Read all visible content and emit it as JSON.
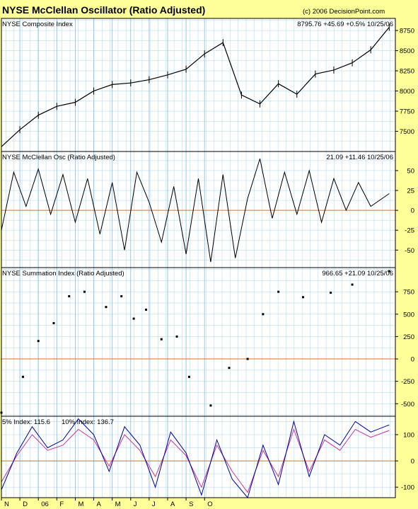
{
  "header": {
    "title": "NYSE McClellan Oscillator (Ratio Adjusted)",
    "copyright": "(c) 2006 DecisionPoint.com"
  },
  "colors": {
    "background": "#ffff99",
    "plot_bg": "#ffffff",
    "grid": "#b8dcf0",
    "zero_line": "#e07020",
    "price": "#000000",
    "index5": "#cc3399",
    "index10": "#000099"
  },
  "months": [
    "N",
    "D",
    "06",
    "F",
    "M",
    "A",
    "M",
    "J",
    "J",
    "A",
    "S",
    "O"
  ],
  "chart_data": [
    {
      "type": "line",
      "name": "composite",
      "title": "NYSE Composite Index",
      "readout": "8795.76  +45.69  +0.5%  10/25/06",
      "ylim": [
        7250,
        8900
      ],
      "yticks": [
        7500,
        7750,
        8000,
        8250,
        8500,
        8750
      ],
      "xlabels": [
        "N",
        "D",
        "06",
        "F",
        "M",
        "A",
        "M",
        "J",
        "J",
        "A",
        "S",
        "O"
      ],
      "x": [
        0,
        12,
        24,
        36,
        48,
        60,
        72,
        84,
        96,
        108,
        120,
        132,
        144,
        156,
        168,
        180,
        192,
        204,
        216,
        228,
        240,
        252
      ],
      "y": [
        7310,
        7520,
        7700,
        7810,
        7860,
        8000,
        8080,
        8100,
        8140,
        8200,
        8270,
        8460,
        8600,
        7950,
        7840,
        8090,
        7960,
        8210,
        8260,
        8350,
        8510,
        8790
      ]
    },
    {
      "type": "line",
      "name": "oscillator",
      "title": "NYSE McClellan Osc (Ratio Adjusted)",
      "readout": "21.09  +11.46  10/25/06",
      "ylim": [
        -72,
        74
      ],
      "yticks": [
        -50,
        -25,
        0,
        25,
        50
      ],
      "xlabels": [
        "N",
        "D",
        "06",
        "F",
        "M",
        "A",
        "M",
        "J",
        "J",
        "A",
        "S",
        "O"
      ],
      "x": [
        0,
        8,
        16,
        24,
        32,
        40,
        48,
        56,
        64,
        72,
        80,
        88,
        96,
        104,
        112,
        120,
        128,
        136,
        144,
        152,
        160,
        168,
        176,
        184,
        192,
        200,
        208,
        216,
        224,
        232,
        240,
        252
      ],
      "y": [
        -25,
        48,
        5,
        52,
        -5,
        45,
        -15,
        40,
        -30,
        35,
        -50,
        48,
        10,
        -40,
        30,
        -55,
        40,
        -65,
        45,
        -60,
        15,
        65,
        -10,
        48,
        -5,
        50,
        -15,
        40,
        0,
        35,
        5,
        21
      ]
    },
    {
      "type": "scatter",
      "name": "summation",
      "title": "NYSE Summation Index (Ratio Adjusted)",
      "readout": "966.65  +21.09  10/25/06",
      "ylim": [
        -640,
        1020
      ],
      "yticks": [
        -500,
        -250,
        0,
        250,
        500,
        750
      ],
      "xlabels": [
        "N",
        "D",
        "06",
        "F",
        "M",
        "A",
        "M",
        "J",
        "J",
        "A",
        "S",
        "O"
      ],
      "x": [
        0,
        14,
        24,
        34,
        44,
        54,
        68,
        78,
        86,
        94,
        104,
        114,
        122,
        136,
        148,
        160,
        170,
        180,
        196,
        214,
        228,
        252
      ],
      "y": [
        -600,
        -200,
        200,
        400,
        700,
        750,
        580,
        700,
        450,
        550,
        220,
        250,
        -200,
        -520,
        -100,
        0,
        500,
        750,
        690,
        740,
        830,
        980
      ]
    },
    {
      "type": "line",
      "name": "breadth_index",
      "title": "",
      "ylim": [
        -140,
        170
      ],
      "yticks": [
        -100,
        0,
        100
      ],
      "xlabels": [
        "N",
        "D",
        "06",
        "F",
        "M",
        "A",
        "M",
        "J",
        "J",
        "A",
        "S",
        "O"
      ],
      "x": [
        0,
        10,
        20,
        30,
        40,
        50,
        60,
        70,
        80,
        90,
        100,
        110,
        120,
        130,
        140,
        150,
        160,
        170,
        180,
        190,
        200,
        210,
        220,
        230,
        240,
        252
      ],
      "series": [
        {
          "name": "5% Index: 115.6",
          "values": [
            -80,
            20,
            100,
            40,
            60,
            120,
            80,
            -20,
            100,
            40,
            -60,
            80,
            20,
            -100,
            60,
            -40,
            -120,
            40,
            -60,
            120,
            -40,
            80,
            40,
            120,
            90,
            116
          ]
        },
        {
          "name": "10% Index: 136.7",
          "values": [
            -110,
            30,
            130,
            50,
            80,
            160,
            100,
            -40,
            130,
            60,
            -100,
            110,
            30,
            -130,
            80,
            -70,
            -140,
            60,
            -90,
            150,
            -60,
            100,
            60,
            150,
            110,
            137
          ]
        }
      ]
    }
  ]
}
